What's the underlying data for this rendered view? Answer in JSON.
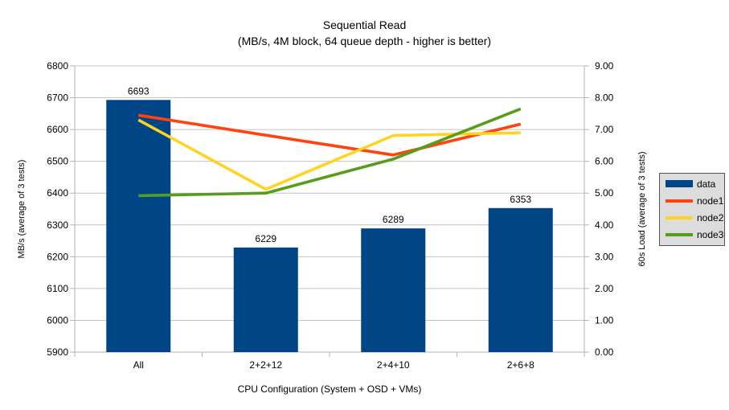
{
  "colors": {
    "bar": "#004586",
    "node1": "#FF420E",
    "node2": "#FFD320",
    "node3": "#579D1C",
    "grid": "#C4C4C4",
    "axis": "#B3B3B3",
    "text": "#000000",
    "legend_bg": "#DCDCDC",
    "legend_border": "#545454"
  },
  "chart_data": {
    "type": "bar+line",
    "title": "Sequential Read",
    "subtitle": "(MB/s, 4M block, 64 queue depth - higher is better)",
    "xlabel": "CPU Configuration (System + OSD + VMs)",
    "ylabel_left": "MB/s (average of 3 tests)",
    "ylabel_right": "60s Load (average of 3 tests)",
    "categories": [
      "All",
      "2+2+12",
      "2+4+10",
      "2+6+8"
    ],
    "bar_series": {
      "name": "data",
      "axis": "left",
      "color_key": "bar",
      "values": [
        6693,
        6229,
        6289,
        6353
      ],
      "data_labels": [
        "6693",
        "6229",
        "6289",
        "6353"
      ]
    },
    "line_series": [
      {
        "name": "node1",
        "axis": "right",
        "color_key": "node1",
        "values": [
          7.45,
          6.82,
          6.2,
          7.17
        ]
      },
      {
        "name": "node2",
        "axis": "right",
        "color_key": "node2",
        "values": [
          7.3,
          5.12,
          6.81,
          6.9
        ]
      },
      {
        "name": "node3",
        "axis": "right",
        "color_key": "node3",
        "values": [
          4.92,
          5.0,
          6.07,
          7.65
        ]
      }
    ],
    "axis_left": {
      "min": 5900,
      "max": 6800,
      "step": 100,
      "decimals": 0
    },
    "axis_right": {
      "min": 0,
      "max": 9,
      "step": 1,
      "decimals": 2
    },
    "grid": "horizontal",
    "legend_position": "right",
    "legend_entries": [
      {
        "label": "data",
        "color_key": "bar",
        "shape": "rect"
      },
      {
        "label": "node1",
        "color_key": "node1",
        "shape": "line"
      },
      {
        "label": "node2",
        "color_key": "node2",
        "shape": "line"
      },
      {
        "label": "node3",
        "color_key": "node3",
        "shape": "line"
      }
    ]
  }
}
